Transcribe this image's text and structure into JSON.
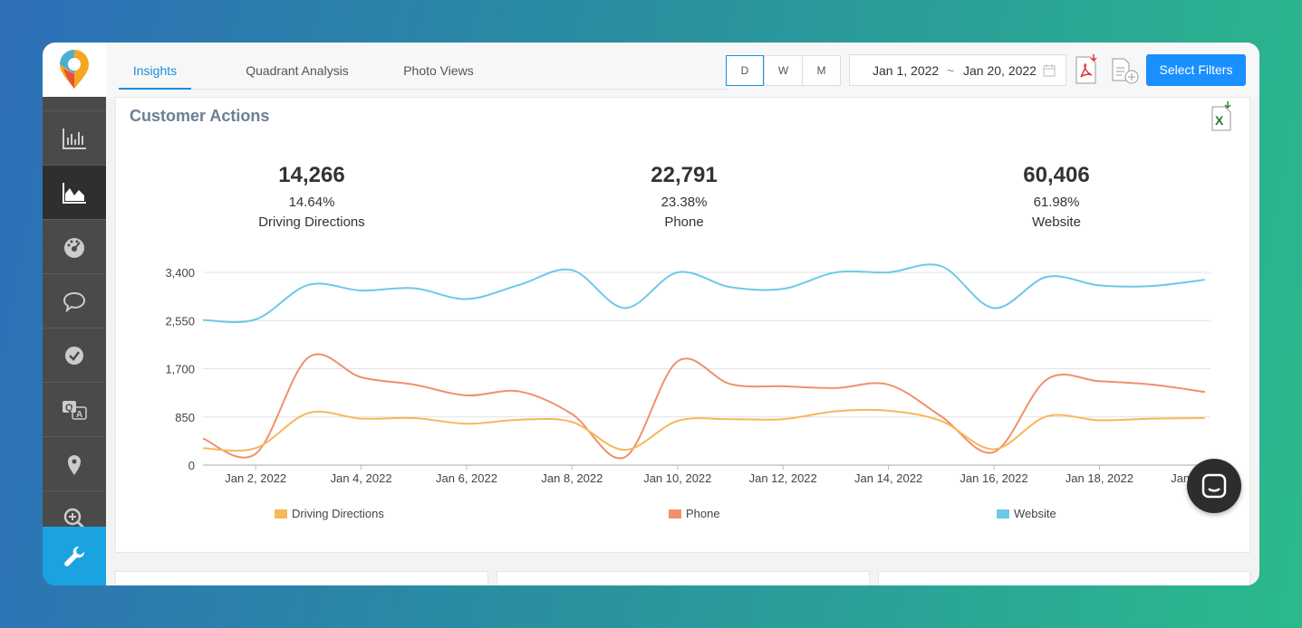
{
  "tabs": [
    {
      "label": "Insights",
      "active": true
    },
    {
      "label": "Quadrant Analysis",
      "active": false
    },
    {
      "label": "Photo Views",
      "active": false
    }
  ],
  "period_buttons": [
    "D",
    "W",
    "M"
  ],
  "date_range": {
    "start": "Jan 1, 2022",
    "separator": "~",
    "end": "Jan 20, 2022"
  },
  "select_filters_label": "Select Filters",
  "card": {
    "title": "Customer Actions",
    "stats": [
      {
        "value": "14,266",
        "percent": "14.64%",
        "label": "Driving Directions"
      },
      {
        "value": "22,791",
        "percent": "23.38%",
        "label": "Phone"
      },
      {
        "value": "60,406",
        "percent": "61.98%",
        "label": "Website"
      }
    ]
  },
  "sidebar_icons": [
    "bar-chart-icon",
    "area-chart-icon",
    "dashboard-gauge-icon",
    "chat-bubble-icon",
    "check-circle-icon",
    "qa-icon",
    "location-pin-icon",
    "zoom-in-icon",
    "wrench-icon"
  ],
  "colors": {
    "driving": "#f8b75a",
    "phone": "#f0906c",
    "website": "#6ec8ea",
    "accent": "#1a8fff"
  },
  "chart_data": {
    "type": "line",
    "x": [
      "Jan 1, 2022",
      "Jan 2, 2022",
      "Jan 3, 2022",
      "Jan 4, 2022",
      "Jan 5, 2022",
      "Jan 6, 2022",
      "Jan 7, 2022",
      "Jan 8, 2022",
      "Jan 9, 2022",
      "Jan 10, 2022",
      "Jan 11, 2022",
      "Jan 12, 2022",
      "Jan 13, 2022",
      "Jan 14, 2022",
      "Jan 15, 2022",
      "Jan 16, 2022",
      "Jan 17, 2022",
      "Jan 18, 2022",
      "Jan 19, 2022",
      "Jan 20, 2022"
    ],
    "x_tick_labels": [
      "Jan 2, 2022",
      "Jan 4, 2022",
      "Jan 6, 2022",
      "Jan 8, 2022",
      "Jan 10, 2022",
      "Jan 12, 2022",
      "Jan 14, 2022",
      "Jan 16, 2022",
      "Jan 18, 2022",
      "Jan 20, 2022"
    ],
    "y_ticks": [
      "0",
      "850",
      "1,700",
      "2,550",
      "3,400"
    ],
    "ylim": [
      0,
      3400
    ],
    "grid": true,
    "legend_position": "bottom",
    "series": [
      {
        "name": "Driving Directions",
        "values": [
          300,
          300,
          920,
          820,
          830,
          730,
          800,
          760,
          270,
          780,
          810,
          810,
          950,
          960,
          780,
          280,
          860,
          790,
          820,
          830
        ]
      },
      {
        "name": "Phone",
        "values": [
          470,
          200,
          1900,
          1550,
          1420,
          1230,
          1300,
          900,
          140,
          1830,
          1430,
          1390,
          1360,
          1420,
          860,
          230,
          1510,
          1480,
          1420,
          1290
        ]
      },
      {
        "name": "Website",
        "values": [
          2560,
          2570,
          3180,
          3080,
          3120,
          2930,
          3180,
          3440,
          2770,
          3400,
          3140,
          3110,
          3400,
          3400,
          3510,
          2770,
          3320,
          3170,
          3160,
          3270
        ]
      }
    ]
  }
}
